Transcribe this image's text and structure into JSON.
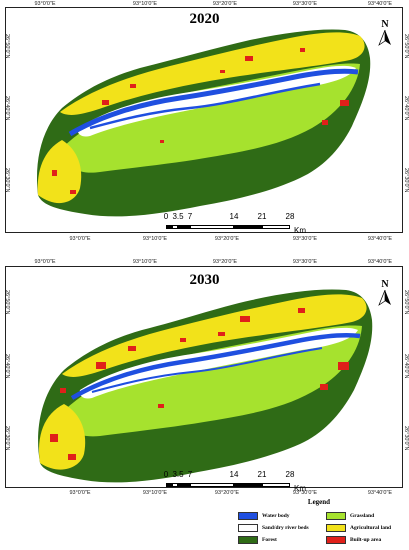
{
  "maps": [
    {
      "title": "2020",
      "lon_labels": [
        "93°0'0\"E",
        "93°10'0\"E",
        "93°20'0\"E",
        "93°30'0\"E",
        "93°40'0\"E"
      ],
      "lat_labels": [
        "26°50'0\"N",
        "26°40'0\"N",
        "26°30'0\"N"
      ]
    },
    {
      "title": "2030",
      "lon_labels": [
        "93°0'0\"E",
        "93°10'0\"E",
        "93°20'0\"E",
        "93°30'0\"E",
        "93°40'0\"E"
      ],
      "lat_labels": [
        "26°50'0\"N",
        "26°40'0\"N",
        "26°30'0\"N"
      ]
    }
  ],
  "north_label": "N",
  "scale": {
    "labels": [
      "0",
      "3.5",
      "7",
      "14",
      "21",
      "28"
    ],
    "unit": "Km"
  },
  "legend": {
    "title": "Legend",
    "items": [
      {
        "label": "Water body",
        "color": "#1f4fe0"
      },
      {
        "label": "Grassland",
        "color": "#a6e22e"
      },
      {
        "label": "Sand/dry river beds",
        "color": "#ffffff"
      },
      {
        "label": "Agricultural land",
        "color": "#f2e21a"
      },
      {
        "label": "Forest",
        "color": "#2f6b16"
      },
      {
        "label": "Built-up area",
        "color": "#e0201a"
      }
    ]
  }
}
